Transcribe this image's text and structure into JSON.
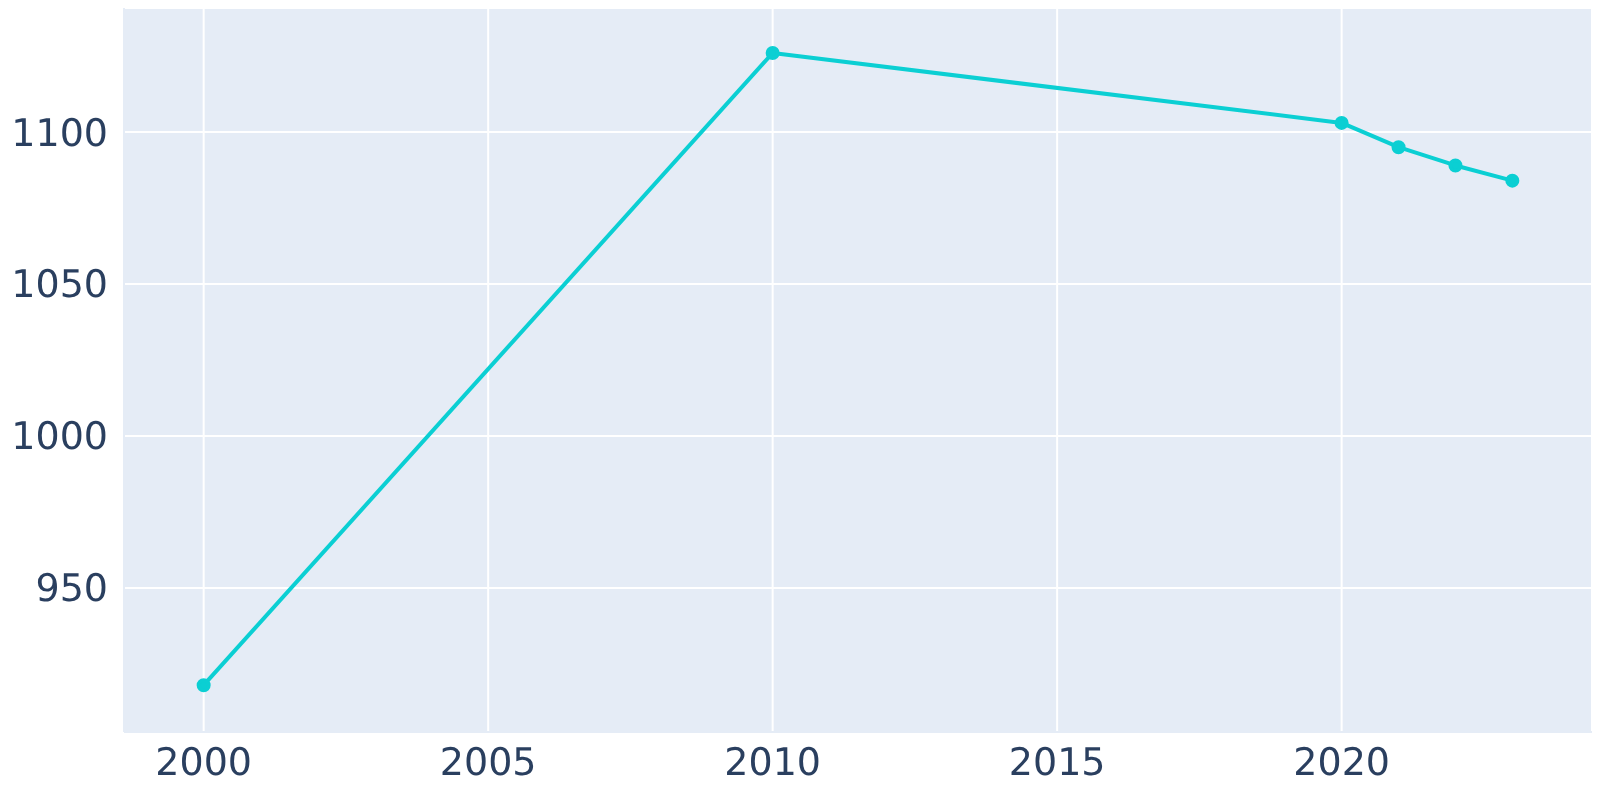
{
  "chart_data": {
    "type": "line",
    "x": [
      2000,
      2010,
      2020,
      2021,
      2022,
      2023
    ],
    "series": [
      {
        "color": "#0bcfd3",
        "values": [
          918,
          1126,
          1103,
          1095,
          1089,
          1084
        ]
      }
    ],
    "xlim": [
      1998.6,
      2024.4
    ],
    "xticks": [
      2000,
      2005,
      2010,
      2015,
      2020
    ],
    "ylim": [
      902.6,
      1140.8
    ],
    "yticks": [
      950,
      1000,
      1050,
      1100
    ],
    "grid": true,
    "marker": "circle",
    "line_style": "solid"
  }
}
